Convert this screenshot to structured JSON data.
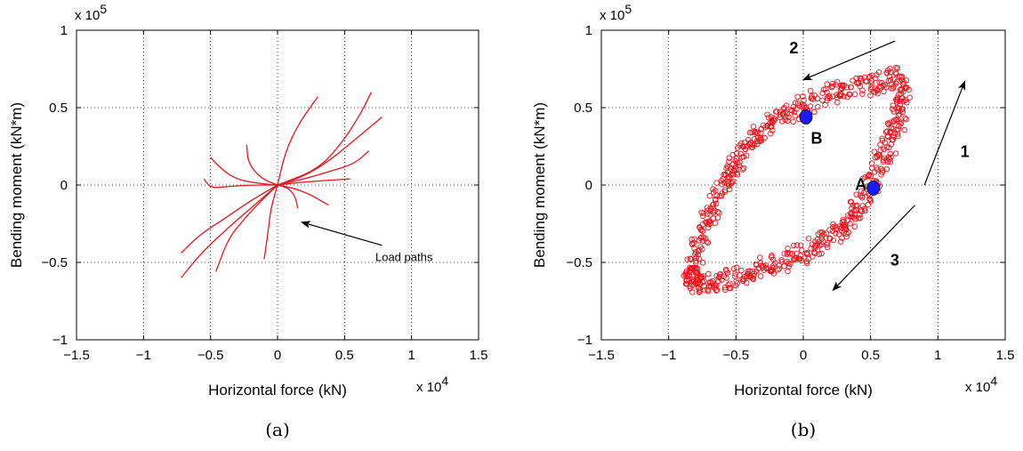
{
  "chart_data": [
    {
      "type": "line",
      "panel": "a",
      "caption": "(a)",
      "xlabel": "Horizontal force (kN)",
      "ylabel": "Bending moment (kN*m)",
      "x_multiplier": "x 10",
      "x_multiplier_exp": "4",
      "y_multiplier": "x 10",
      "y_multiplier_exp": "5",
      "xlim": [
        -1.5,
        1.5
      ],
      "ylim": [
        -1,
        1
      ],
      "xticks": [
        -1.5,
        -1,
        -0.5,
        0,
        0.5,
        1,
        1.5
      ],
      "yticks": [
        -1,
        -0.5,
        0,
        0.5,
        1
      ],
      "xtick_labels": [
        "−1.5",
        "−1",
        "−0.5",
        "0",
        "0.5",
        "1",
        "1.5"
      ],
      "ytick_labels": [
        "−1",
        "−0.5",
        "0",
        "0.5",
        "1"
      ],
      "grid": true,
      "color": "#e8141c",
      "series": [
        {
          "points": [
            [
              0,
              0
            ],
            [
              -0.2,
              -0.15
            ],
            [
              -0.4,
              -0.3
            ],
            [
              -0.58,
              -0.45
            ],
            [
              -0.72,
              -0.6
            ]
          ]
        },
        {
          "points": [
            [
              0,
              0
            ],
            [
              -0.2,
              -0.1
            ],
            [
              -0.4,
              -0.22
            ],
            [
              -0.58,
              -0.32
            ],
            [
              -0.72,
              -0.44
            ]
          ]
        },
        {
          "points": [
            [
              0,
              0
            ],
            [
              -0.12,
              -0.1
            ],
            [
              -0.25,
              -0.22
            ],
            [
              -0.37,
              -0.35
            ],
            [
              -0.46,
              -0.56
            ]
          ]
        },
        {
          "points": [
            [
              0,
              0
            ],
            [
              -0.05,
              -0.15
            ],
            [
              -0.07,
              -0.3
            ],
            [
              -0.1,
              -0.48
            ]
          ]
        },
        {
          "points": [
            [
              0,
              0
            ],
            [
              -0.2,
              0
            ],
            [
              -0.38,
              -0.01
            ],
            [
              -0.5,
              -0.02
            ],
            [
              -0.55,
              0.04
            ]
          ]
        },
        {
          "points": [
            [
              0,
              0
            ],
            [
              -0.15,
              0.01
            ],
            [
              -0.32,
              0.04
            ],
            [
              -0.44,
              0.12
            ],
            [
              -0.5,
              0.18
            ]
          ]
        },
        {
          "points": [
            [
              0,
              0
            ],
            [
              -0.12,
              0.04
            ],
            [
              -0.22,
              0.14
            ],
            [
              -0.23,
              0.26
            ]
          ]
        },
        {
          "points": [
            [
              0,
              0
            ],
            [
              0.06,
              0.22
            ],
            [
              0.16,
              0.4
            ],
            [
              0.3,
              0.57
            ]
          ]
        },
        {
          "points": [
            [
              0,
              0
            ],
            [
              0.18,
              0.05
            ],
            [
              0.36,
              0.14
            ],
            [
              0.56,
              0.28
            ],
            [
              0.78,
              0.44
            ]
          ]
        },
        {
          "points": [
            [
              0,
              0
            ],
            [
              0.2,
              0.04
            ],
            [
              0.4,
              0.09
            ],
            [
              0.58,
              0.14
            ],
            [
              0.68,
              0.22
            ]
          ]
        },
        {
          "points": [
            [
              0,
              0
            ],
            [
              0.3,
              0.1
            ],
            [
              0.48,
              0.27
            ],
            [
              0.62,
              0.46
            ],
            [
              0.7,
              0.6
            ]
          ]
        },
        {
          "points": [
            [
              0,
              0
            ],
            [
              0.2,
              0.02
            ],
            [
              0.38,
              0.03
            ],
            [
              0.54,
              0.04
            ]
          ]
        },
        {
          "points": [
            [
              0,
              0
            ],
            [
              0.12,
              -0.02
            ],
            [
              0.24,
              -0.06
            ],
            [
              0.32,
              -0.1
            ],
            [
              0.38,
              -0.13
            ]
          ]
        },
        {
          "points": [
            [
              0,
              0
            ],
            [
              0.08,
              -0.02
            ],
            [
              0.12,
              -0.06
            ],
            [
              0.14,
              -0.1
            ],
            [
              0.15,
              -0.15
            ]
          ]
        }
      ],
      "annotations": [
        {
          "text": "Load paths",
          "x": 0.73,
          "y": -0.49,
          "arrow_from": [
            0.78,
            -0.39
          ],
          "arrow_to": [
            0.18,
            -0.24
          ]
        }
      ]
    },
    {
      "type": "scatter",
      "panel": "b",
      "caption": "(b)",
      "xlabel": "Horizontal force (kN)",
      "ylabel": "Bending moment (kN*m)",
      "x_multiplier": "x 10",
      "x_multiplier_exp": "4",
      "y_multiplier": "x 10",
      "y_multiplier_exp": "5",
      "xlim": [
        -1.5,
        1.5
      ],
      "ylim": [
        -1,
        1
      ],
      "xticks": [
        -1.5,
        -1,
        -0.5,
        0,
        0.5,
        1,
        1.5
      ],
      "yticks": [
        -1,
        -0.5,
        0,
        0.5,
        1
      ],
      "xtick_labels": [
        "−1.5",
        "−1",
        "−0.5",
        "0",
        "0.5",
        "1",
        "1.5"
      ],
      "ytick_labels": [
        "−1",
        "−0.5",
        "0",
        "0.5",
        "1"
      ],
      "grid": true,
      "marker_color": "#e8141c",
      "point_color": "#1a1aff",
      "loop_outline": [
        [
          -0.82,
          -0.55
        ],
        [
          -0.78,
          -0.4
        ],
        [
          -0.72,
          -0.26
        ],
        [
          -0.65,
          -0.12
        ],
        [
          -0.58,
          0.0
        ],
        [
          -0.52,
          0.12
        ],
        [
          -0.44,
          0.22
        ],
        [
          -0.35,
          0.32
        ],
        [
          -0.24,
          0.4
        ],
        [
          -0.12,
          0.46
        ],
        [
          0.0,
          0.5
        ],
        [
          0.14,
          0.58
        ],
        [
          0.28,
          0.62
        ],
        [
          0.42,
          0.64
        ],
        [
          0.56,
          0.66
        ],
        [
          0.68,
          0.7
        ],
        [
          0.74,
          0.62
        ],
        [
          0.72,
          0.48
        ],
        [
          0.68,
          0.36
        ],
        [
          0.62,
          0.24
        ],
        [
          0.56,
          0.12
        ],
        [
          0.5,
          0.0
        ],
        [
          0.42,
          -0.12
        ],
        [
          0.34,
          -0.22
        ],
        [
          0.26,
          -0.3
        ],
        [
          0.16,
          -0.36
        ],
        [
          0.04,
          -0.42
        ],
        [
          -0.1,
          -0.47
        ],
        [
          -0.24,
          -0.52
        ],
        [
          -0.38,
          -0.56
        ],
        [
          -0.52,
          -0.6
        ],
        [
          -0.66,
          -0.62
        ],
        [
          -0.78,
          -0.64
        ],
        [
          -0.84,
          -0.6
        ]
      ],
      "special_points": [
        {
          "label": "A",
          "x": 0.52,
          "y": -0.02
        },
        {
          "label": "B",
          "x": 0.02,
          "y": 0.44
        }
      ],
      "arrows": [
        {
          "label": "1",
          "from": [
            0.9,
            0.0
          ],
          "to": [
            1.2,
            0.67
          ],
          "label_at": [
            1.2,
            0.18
          ]
        },
        {
          "label": "2",
          "from": [
            0.68,
            0.93
          ],
          "to": [
            0.0,
            0.68
          ],
          "label_at": [
            -0.07,
            0.85
          ]
        },
        {
          "label": "3",
          "from": [
            0.83,
            -0.13
          ],
          "to": [
            0.22,
            -0.68
          ],
          "label_at": [
            0.68,
            -0.52
          ]
        }
      ]
    }
  ]
}
